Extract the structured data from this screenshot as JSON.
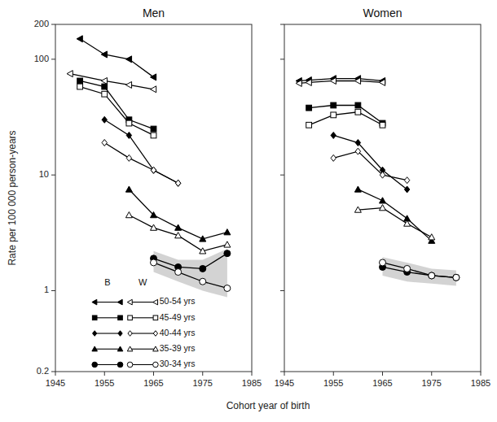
{
  "chart_data": [
    {
      "type": "line",
      "title": "Men",
      "xlabel": "Cohort year of birth",
      "ylabel": "Rate per 100 000 person-years",
      "log": "y",
      "grid": false,
      "legend": "lower left",
      "xlim": [
        1945,
        1985
      ],
      "xticks": [
        1945,
        1955,
        1965,
        1975,
        1985
      ],
      "ylim": [
        0.2,
        200
      ],
      "yticks": [
        0.2,
        1,
        10,
        100,
        200
      ],
      "annotations": [
        "B",
        "W"
      ],
      "series": [
        {
          "type": "band",
          "color": "silver",
          "x": [
            1965,
            1970,
            1975,
            1980
          ],
          "low": [
            1.45,
            1.2,
            1.0,
            0.88
          ],
          "high": [
            2.2,
            1.85,
            1.85,
            2.3
          ]
        },
        {
          "name": "50-54 yrs",
          "color": "black",
          "marker": "triangle-left-filled",
          "line_style": "solid",
          "x": [
            1950,
            1955,
            1960,
            1965
          ],
          "values": [
            150,
            110,
            100,
            70
          ]
        },
        {
          "color": "black",
          "marker": "triangle-left-open",
          "line_style": "solid",
          "x": [
            1948,
            1955,
            1960,
            1965
          ],
          "values": [
            75,
            65,
            60,
            55
          ]
        },
        {
          "name": "45-49 yrs",
          "color": "black",
          "marker": "square-filled",
          "line_style": "solid",
          "x": [
            1950,
            1955,
            1960,
            1965
          ],
          "values": [
            65,
            58,
            30,
            25
          ]
        },
        {
          "color": "black",
          "marker": "square-open",
          "line_style": "solid",
          "x": [
            1950,
            1955,
            1960,
            1965
          ],
          "values": [
            58,
            50,
            28,
            22
          ]
        },
        {
          "name": "40-44 yrs",
          "color": "black",
          "marker": "diamond-filled",
          "line_style": "solid",
          "x": [
            1955,
            1960,
            1965,
            1970
          ],
          "values": [
            30,
            22,
            11,
            8.5
          ]
        },
        {
          "color": "black",
          "marker": "diamond-open",
          "line_style": "solid",
          "x": [
            1955,
            1960,
            1965,
            1970
          ],
          "values": [
            19,
            14,
            11,
            8.5
          ]
        },
        {
          "name": "35-39 yrs",
          "color": "black",
          "marker": "triangle-up-filled",
          "line_style": "solid",
          "x": [
            1960,
            1965,
            1970,
            1975,
            1980
          ],
          "values": [
            7.5,
            4.5,
            3.5,
            2.8,
            3.2
          ]
        },
        {
          "color": "black",
          "marker": "triangle-up-open",
          "line_style": "solid",
          "x": [
            1960,
            1965,
            1970,
            1975,
            1980
          ],
          "values": [
            4.5,
            3.5,
            3.0,
            2.2,
            2.5
          ]
        },
        {
          "name": "30-34 yrs",
          "color": "black",
          "marker": "circle-filled",
          "line_style": "solid",
          "x": [
            1965,
            1970,
            1975,
            1980
          ],
          "values": [
            1.9,
            1.6,
            1.55,
            2.1
          ]
        },
        {
          "color": "black",
          "marker": "circle-open",
          "line_style": "solid",
          "x": [
            1965,
            1970,
            1975,
            1980
          ],
          "values": [
            1.75,
            1.45,
            1.2,
            1.05
          ]
        }
      ]
    },
    {
      "type": "line",
      "title": "Women",
      "log": "y",
      "grid": false,
      "tick_labels": "x",
      "xlim": [
        1945,
        1985
      ],
      "xticks": [
        1945,
        1955,
        1965,
        1975,
        1985
      ],
      "ylim": [
        0.2,
        200
      ],
      "yticks": [
        0.2,
        1,
        10,
        100,
        200
      ],
      "series": [
        {
          "type": "band",
          "color": "silver",
          "x": [
            1965,
            1970,
            1975,
            1980
          ],
          "low": [
            1.35,
            1.2,
            1.15,
            1.1
          ],
          "high": [
            1.95,
            1.75,
            1.55,
            1.5
          ]
        },
        {
          "color": "black",
          "marker": "triangle-left-filled",
          "line_style": "solid",
          "x": [
            1948,
            1950,
            1955,
            1960,
            1965
          ],
          "values": [
            65,
            66,
            68,
            68,
            65
          ]
        },
        {
          "color": "black",
          "marker": "triangle-left-open",
          "line_style": "solid",
          "x": [
            1948,
            1950,
            1955,
            1960,
            1965
          ],
          "values": [
            62,
            63,
            65,
            65,
            63
          ]
        },
        {
          "color": "black",
          "marker": "square-filled",
          "line_style": "solid",
          "x": [
            1950,
            1955,
            1960,
            1965
          ],
          "values": [
            38,
            40,
            40,
            28
          ]
        },
        {
          "color": "black",
          "marker": "square-open",
          "line_style": "solid",
          "x": [
            1950,
            1955,
            1960,
            1965
          ],
          "values": [
            27,
            33,
            35,
            27
          ]
        },
        {
          "color": "black",
          "marker": "diamond-filled",
          "line_style": "solid",
          "x": [
            1955,
            1960,
            1965,
            1970
          ],
          "values": [
            22,
            19,
            11,
            7.5
          ]
        },
        {
          "color": "black",
          "marker": "diamond-open",
          "line_style": "solid",
          "x": [
            1955,
            1960,
            1965,
            1970
          ],
          "values": [
            14,
            16,
            10,
            9
          ]
        },
        {
          "color": "black",
          "marker": "triangle-up-filled",
          "line_style": "solid",
          "x": [
            1960,
            1965,
            1970,
            1975
          ],
          "values": [
            7.5,
            6.0,
            4.2,
            2.7
          ]
        },
        {
          "color": "black",
          "marker": "triangle-up-open",
          "line_style": "solid",
          "x": [
            1960,
            1965,
            1970,
            1975
          ],
          "values": [
            5.0,
            5.2,
            3.8,
            2.9
          ]
        },
        {
          "color": "black",
          "marker": "circle-filled",
          "line_style": "solid",
          "x": [
            1965,
            1970,
            1975,
            1980
          ],
          "values": [
            1.6,
            1.45,
            1.35,
            1.3
          ]
        },
        {
          "color": "black",
          "marker": "circle-open",
          "line_style": "solid",
          "x": [
            1965,
            1970,
            1975,
            1980
          ],
          "values": [
            1.75,
            1.55,
            1.35,
            1.3
          ]
        }
      ]
    }
  ]
}
